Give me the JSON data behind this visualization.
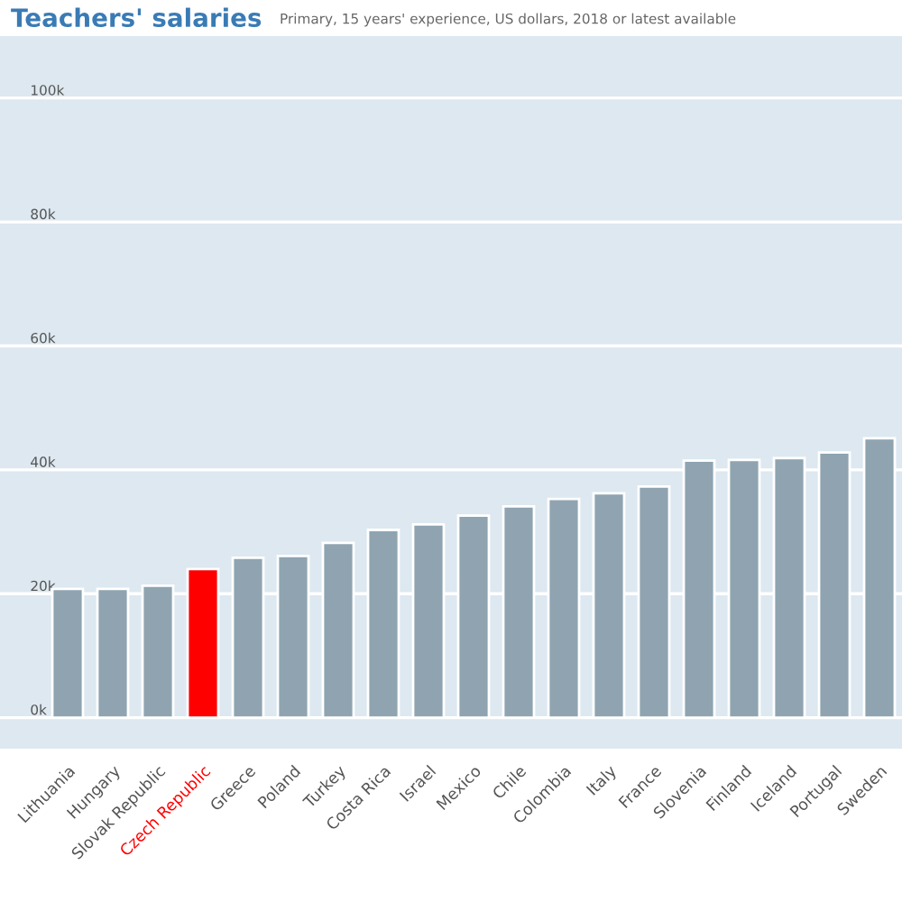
{
  "chart_data": {
    "type": "bar",
    "title": "Teachers' salaries",
    "subtitle": "Primary, 15 years' experience, US dollars, 2018 or latest available",
    "categories": [
      "Lithuania",
      "Hungary",
      "Slovak Republic",
      "Czech Republic",
      "Greece",
      "Poland",
      "Turkey",
      "Costa Rica",
      "Israel",
      "Mexico",
      "Chile",
      "Colombia",
      "Italy",
      "France",
      "Slovenia",
      "Finland",
      "Iceland",
      "Portugal",
      "Sweden"
    ],
    "values": [
      20.8,
      20.8,
      21.3,
      24.0,
      25.8,
      26.1,
      28.2,
      30.3,
      31.2,
      32.6,
      34.1,
      35.3,
      36.2,
      37.3,
      41.5,
      41.6,
      41.9,
      42.8,
      45.1
    ],
    "colors": [
      "#8fa4b0",
      "#8fa4b0",
      "#8fa4b0",
      "#ff0000",
      "#8fa4b0",
      "#8fa4b0",
      "#8fa4b0",
      "#8fa4b0",
      "#8fa4b0",
      "#8fa4b0",
      "#8fa4b0",
      "#8fa4b0",
      "#8fa4b0",
      "#8fa4b0",
      "#8fa4b0",
      "#8fa4b0",
      "#8fa4b0",
      "#8fa4b0",
      "#8fa4b0"
    ],
    "color": "#8fa4b0",
    "ylim": [
      -5,
      110
    ],
    "yticks": [
      {
        "value": 0,
        "label": "0k"
      },
      {
        "value": 20,
        "label": "20k"
      },
      {
        "value": 40,
        "label": "40k"
      },
      {
        "value": 60,
        "label": "60k"
      },
      {
        "value": 80,
        "label": "80k"
      },
      {
        "value": 100,
        "label": "100k"
      }
    ],
    "grid": "y"
  }
}
